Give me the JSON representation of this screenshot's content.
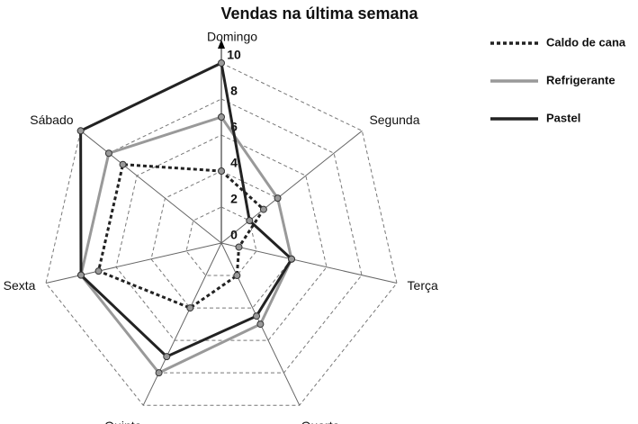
{
  "chart_data": {
    "type": "radar",
    "title": "Vendas na última semana",
    "categories": [
      "Domingo",
      "Segunda",
      "Terça",
      "Quarta",
      "Quinta",
      "Sexta",
      "Sábado"
    ],
    "series": [
      {
        "name": "Caldo de cana",
        "color": "#222222",
        "dash": "dotted",
        "values": [
          4,
          3,
          1,
          2,
          4,
          7,
          7
        ]
      },
      {
        "name": "Refrigerante",
        "color": "#999999",
        "dash": "solid",
        "values": [
          7,
          4,
          4,
          5,
          8,
          8,
          8
        ]
      },
      {
        "name": "Pastel",
        "color": "#222222",
        "dash": "solid",
        "values": [
          10,
          2,
          4,
          4.5,
          7,
          8,
          10
        ]
      }
    ],
    "rlim": [
      0,
      10
    ],
    "rticks": [
      0,
      2,
      4,
      6,
      8,
      10
    ],
    "grid": true,
    "legend": "right"
  }
}
